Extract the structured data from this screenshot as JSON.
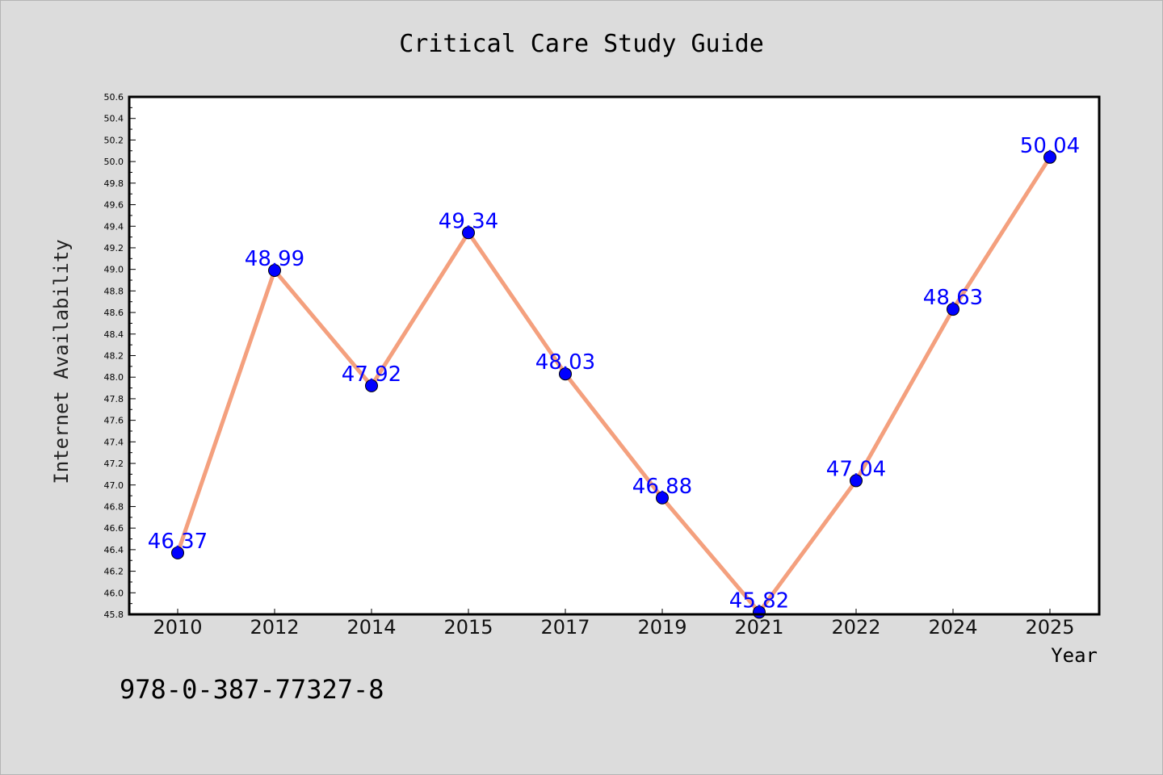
{
  "chart_data": {
    "type": "line",
    "title": "Critical Care Study Guide",
    "xlabel": "Year",
    "ylabel": "Internet Availability",
    "categories": [
      "2010",
      "2012",
      "2014",
      "2015",
      "2017",
      "2019",
      "2021",
      "2022",
      "2024",
      "2025"
    ],
    "series": [
      {
        "values": [
          46.37,
          48.99,
          47.92,
          49.34,
          48.03,
          46.88,
          45.82,
          47.04,
          48.63,
          50.04
        ],
        "labels": [
          "46.37",
          "48.99",
          "47.92",
          "49.34",
          "48.03",
          "46.88",
          "45.82",
          "47.04",
          "48.63",
          "50.04"
        ]
      }
    ],
    "ylim": [
      45.8,
      50.6
    ],
    "yticks": [
      "45.8",
      "46.0",
      "46.2",
      "46.4",
      "46.6",
      "46.8",
      "47.0",
      "47.2",
      "47.4",
      "47.6",
      "47.8",
      "48.0",
      "48.2",
      "48.4",
      "48.6",
      "48.8",
      "49.0",
      "49.2",
      "49.4",
      "49.6",
      "49.8",
      "50.0",
      "50.2",
      "50.4",
      "50.6"
    ],
    "grid": false,
    "legend": "none"
  },
  "footer": {
    "isbn": "978-0-387-77327-8"
  },
  "colors": {
    "background": "#dcdcdc",
    "plot_background": "#ffffff",
    "line": "#f4a07e",
    "marker": "#0000ff",
    "data_label": "#0000ff"
  }
}
